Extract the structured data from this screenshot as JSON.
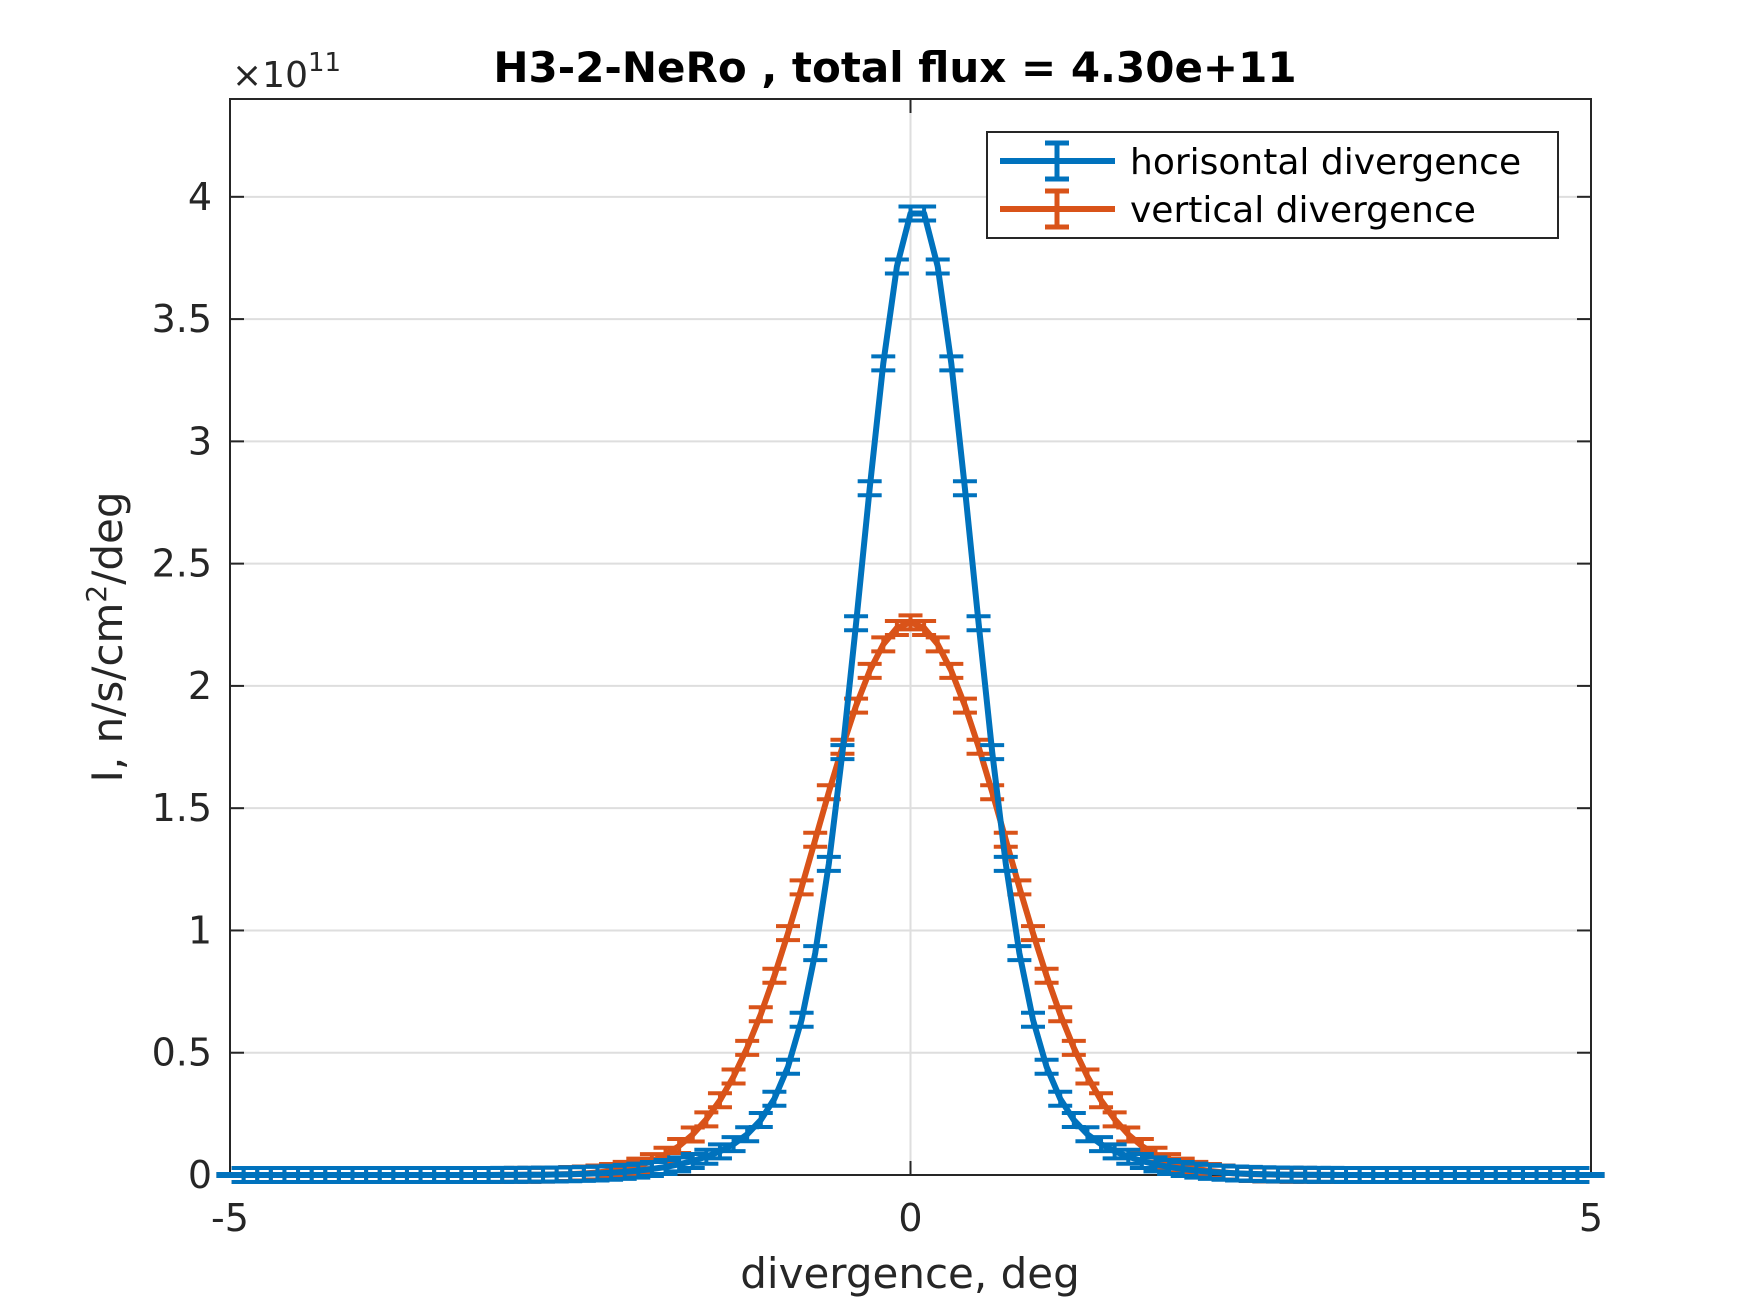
{
  "chart_data": {
    "type": "line",
    "title": "H3-2-NeRo , total flux =  4.30e+11",
    "xlabel": "divergence, deg",
    "ylabel_main": "I, n/s/cm",
    "ylabel_sup": "2",
    "ylabel_tail": "/deg",
    "exponent_base": "×10",
    "exponent_power": "11",
    "xlim": [
      -5,
      5
    ],
    "ylim": [
      0,
      4.4
    ],
    "x_ticks": [
      -5,
      0,
      5
    ],
    "x_tick_labels": [
      "-5",
      "0",
      "5"
    ],
    "y_ticks": [
      0,
      0.5,
      1,
      1.5,
      2,
      2.5,
      3,
      3.5,
      4
    ],
    "y_tick_labels": [
      "0",
      "0.5",
      "1",
      "1.5",
      "2",
      "2.5",
      "3",
      "3.5",
      "4"
    ],
    "grid": true,
    "legend_position": "top-right",
    "x_range": [
      -5.1,
      5.1
    ],
    "x_step": 0.1,
    "series": [
      {
        "name": "horisontal divergence",
        "color": "#0072BD",
        "peak": 3.96,
        "center": 0.05,
        "sigma": 0.4,
        "tail_weight": 0.12,
        "tail_sigma": 0.8
      },
      {
        "name": "vertical divergence",
        "color": "#D95319",
        "peak": 2.26,
        "center": 0.0,
        "sigma": 0.7,
        "tail_weight": 0.0,
        "tail_sigma": 1.0
      }
    ]
  }
}
